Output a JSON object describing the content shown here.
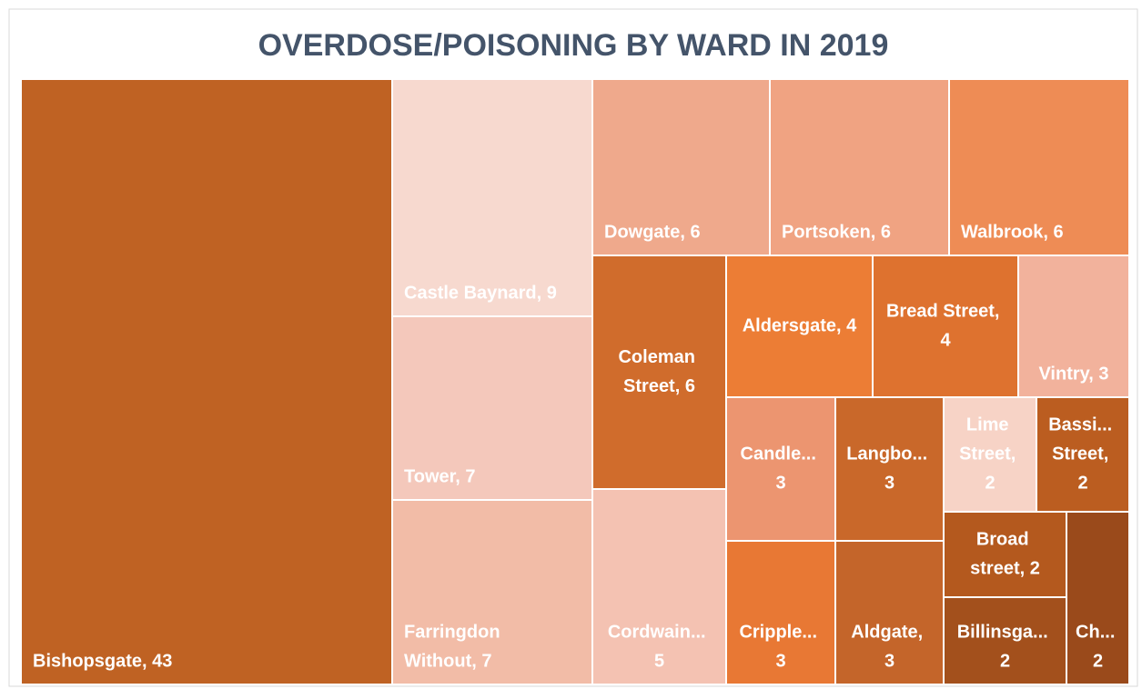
{
  "chart_data": {
    "type": "treemap",
    "title": "OVERDOSE/POISONING BY WARD IN 2019",
    "labels": [
      "Bishopsgate, 43",
      "Castle Baynard, 9",
      "Tower, 7",
      "Farringdon Without, 7",
      "Dowgate, 6",
      "Portsoken, 6",
      "Walbrook, 6",
      "Coleman Street, 6",
      "Cordwain... 5",
      "Aldersgate, 4",
      "Bread Street, 4",
      "Vintry, 3",
      "Candle... 3",
      "Langbo... 3",
      "Lime Street, 2",
      "Bassi... Street, 2",
      "Cripple... 3",
      "Aldgate, 3",
      "Broad street, 2",
      "Billinsga... 2",
      "Ch... 2"
    ],
    "values": [
      43,
      9,
      7,
      7,
      6,
      6,
      6,
      6,
      5,
      4,
      4,
      3,
      3,
      3,
      2,
      2,
      3,
      3,
      2,
      2,
      2
    ],
    "colors": [
      "#bf6223",
      "#f7d9cf",
      "#f4c8bb",
      "#f2bca7",
      "#efa98c",
      "#f0a382",
      "#ee8c55",
      "#d06c2c",
      "#f4c2b2",
      "#ec7d35",
      "#de722f",
      "#f2b29c",
      "#ec9570",
      "#c9682a",
      "#f7d3c6",
      "#bb5d20",
      "#e87834",
      "#c4652a",
      "#b4591e",
      "#a3501c",
      "#9a4a1b"
    ]
  }
}
